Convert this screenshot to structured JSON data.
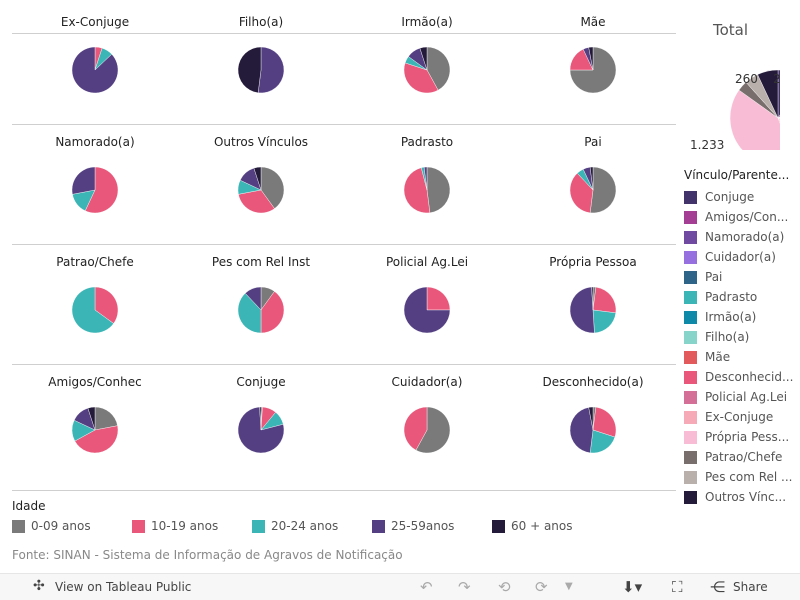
{
  "colors": {
    "age": [
      "#7a7a7a",
      "#e9577b",
      "#3bb5b5",
      "#533f82",
      "#241a3a"
    ]
  },
  "age_legend": {
    "title": "Idade",
    "items": [
      "0-09 anos",
      "10-19 anos",
      "20-24 anos",
      "25-59anos",
      "60 + anos"
    ]
  },
  "panels": [
    {
      "title": "Ex-Conjuge",
      "values": [
        0,
        5,
        8,
        87,
        0
      ]
    },
    {
      "title": "Filho(a)",
      "values": [
        0,
        0,
        0,
        52,
        48
      ]
    },
    {
      "title": "Irmão(a)",
      "values": [
        42,
        38,
        5,
        10,
        5
      ]
    },
    {
      "title": "Mãe",
      "values": [
        75,
        18,
        0,
        4,
        3
      ]
    },
    {
      "title": "Namorado(a)",
      "values": [
        0,
        57,
        15,
        28,
        0
      ]
    },
    {
      "title": "Outros Vínculos",
      "values": [
        40,
        32,
        10,
        13,
        5
      ]
    },
    {
      "title": "Padrasto",
      "values": [
        48,
        48,
        2,
        2,
        0
      ]
    },
    {
      "title": "Pai",
      "values": [
        52,
        36,
        5,
        5,
        2
      ]
    },
    {
      "title": "Patrao/Chefe",
      "values": [
        0,
        35,
        65,
        0,
        0
      ]
    },
    {
      "title": "Pes com Rel Inst",
      "values": [
        10,
        40,
        38,
        12,
        0
      ]
    },
    {
      "title": "Policial Ag.Lei",
      "values": [
        0,
        25,
        0,
        75,
        0
      ]
    },
    {
      "title": "Própria Pessoa",
      "values": [
        2,
        25,
        22,
        50,
        1
      ]
    },
    {
      "title": "Amigos/Conhec",
      "values": [
        22,
        45,
        15,
        13,
        5
      ]
    },
    {
      "title": "Conjuge",
      "values": [
        1,
        10,
        10,
        78,
        1
      ]
    },
    {
      "title": "Cuidador(a)",
      "values": [
        58,
        42,
        0,
        0,
        0
      ]
    },
    {
      "title": "Desconhecido(a)",
      "values": [
        2,
        28,
        22,
        45,
        3
      ]
    }
  ],
  "total": {
    "title": "Total",
    "labels": [
      "260",
      "2",
      "1.233"
    ],
    "values": [
      8,
      6,
      2,
      1,
      2,
      3,
      2,
      2,
      3,
      4,
      2,
      3,
      35,
      3,
      4,
      6
    ]
  },
  "vinculo_legend": {
    "title": "Vínculo/Parente...",
    "items": [
      {
        "label": "Conjuge",
        "color": "#43336b"
      },
      {
        "label": "Amigos/Con...",
        "color": "#a43e94"
      },
      {
        "label": "Namorado(a)",
        "color": "#6f4aa0"
      },
      {
        "label": "Cuidador(a)",
        "color": "#9770e0"
      },
      {
        "label": "Pai",
        "color": "#2f6489"
      },
      {
        "label": "Padrasto",
        "color": "#3bb5b5"
      },
      {
        "label": "Irmão(a)",
        "color": "#0f89a8"
      },
      {
        "label": "Filho(a)",
        "color": "#87d4cb"
      },
      {
        "label": "Mãe",
        "color": "#e25a5c"
      },
      {
        "label": "Desconhecid...",
        "color": "#e9577b"
      },
      {
        "label": "Policial Ag.Lei",
        "color": "#d46f97"
      },
      {
        "label": "Ex-Conjuge",
        "color": "#f6a9b6"
      },
      {
        "label": "Própria Pess...",
        "color": "#f8bdd4"
      },
      {
        "label": "Patrao/Chefe",
        "color": "#786e6c"
      },
      {
        "label": "Pes com Rel ...",
        "color": "#bab0ab"
      },
      {
        "label": "Outros Vínc...",
        "color": "#241a3a"
      }
    ]
  },
  "source": "Fonte: SINAN - Sistema de Informação de Agravos de Notificação",
  "toolbar": {
    "view": "View on Tableau Public",
    "share": "Share"
  }
}
